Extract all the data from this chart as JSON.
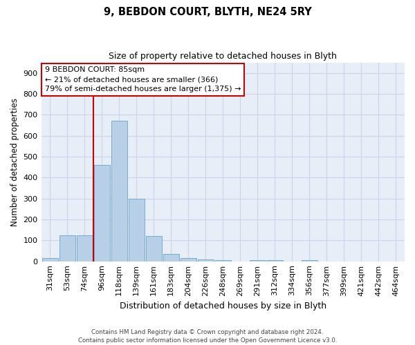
{
  "title1": "9, BEBDON COURT, BLYTH, NE24 5RY",
  "title2": "Size of property relative to detached houses in Blyth",
  "xlabel": "Distribution of detached houses by size in Blyth",
  "ylabel": "Number of detached properties",
  "categories": [
    "31sqm",
    "53sqm",
    "74sqm",
    "96sqm",
    "118sqm",
    "139sqm",
    "161sqm",
    "183sqm",
    "204sqm",
    "226sqm",
    "248sqm",
    "269sqm",
    "291sqm",
    "312sqm",
    "334sqm",
    "356sqm",
    "377sqm",
    "399sqm",
    "421sqm",
    "442sqm",
    "464sqm"
  ],
  "values": [
    15,
    125,
    125,
    460,
    670,
    300,
    120,
    35,
    15,
    10,
    5,
    0,
    5,
    5,
    0,
    5,
    0,
    0,
    0,
    0,
    0
  ],
  "bar_color": "#b8cfe8",
  "bar_edge_color": "#7aaad0",
  "grid_color": "#c8d4e8",
  "background_color": "#e8eef8",
  "ylim": [
    0,
    950
  ],
  "yticks": [
    0,
    100,
    200,
    300,
    400,
    500,
    600,
    700,
    800,
    900
  ],
  "property_line_index": 3,
  "annotation_line1": "9 BEBDON COURT: 85sqm",
  "annotation_line2": "← 21% of detached houses are smaller (366)",
  "annotation_line3": "79% of semi-detached houses are larger (1,375) →",
  "footer_line1": "Contains HM Land Registry data © Crown copyright and database right 2024.",
  "footer_line2": "Contains public sector information licensed under the Open Government Licence v3.0."
}
